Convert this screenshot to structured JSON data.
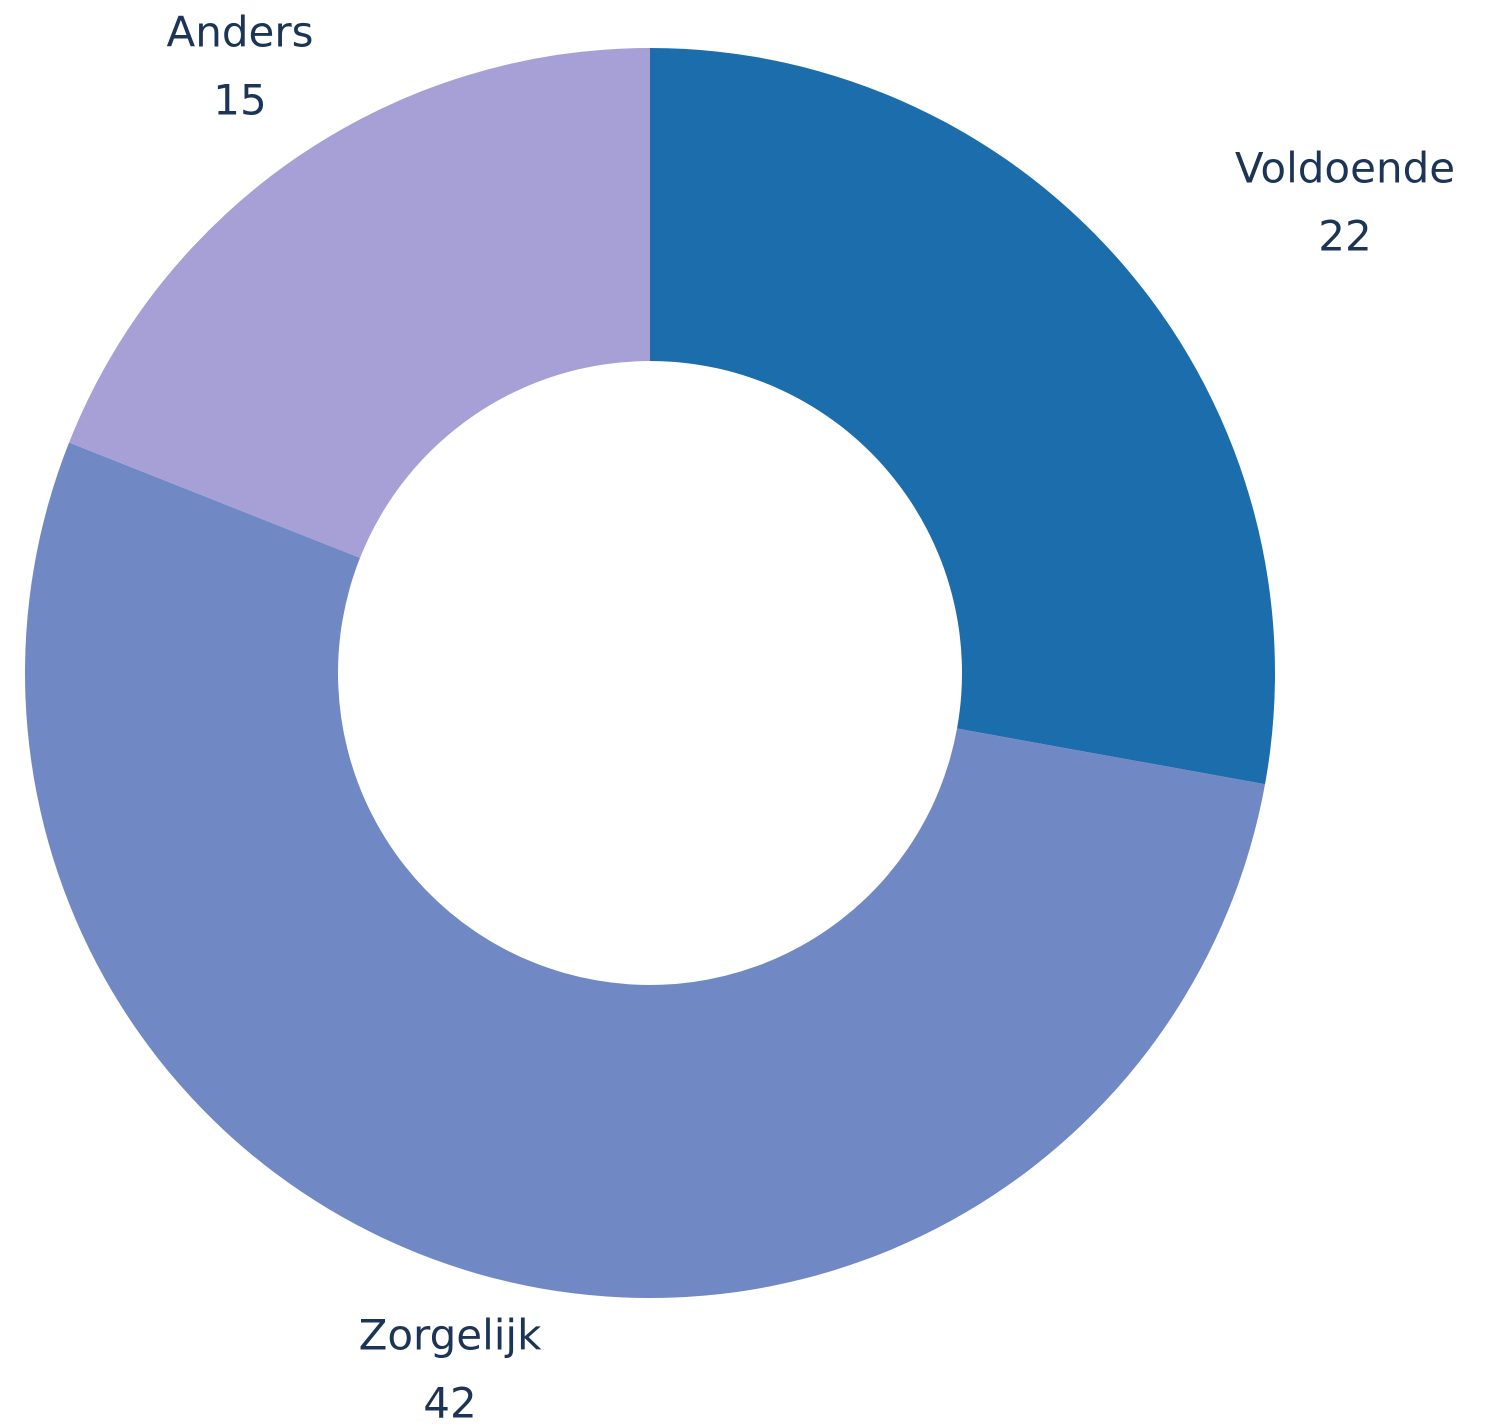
{
  "chart_data": {
    "type": "donut",
    "categories": [
      "Voldoende",
      "Zorgelijk",
      "Anders"
    ],
    "values": [
      22,
      42,
      15
    ],
    "colors": [
      "#1b6dab",
      "#7088c4",
      "#a7a0d6"
    ]
  }
}
